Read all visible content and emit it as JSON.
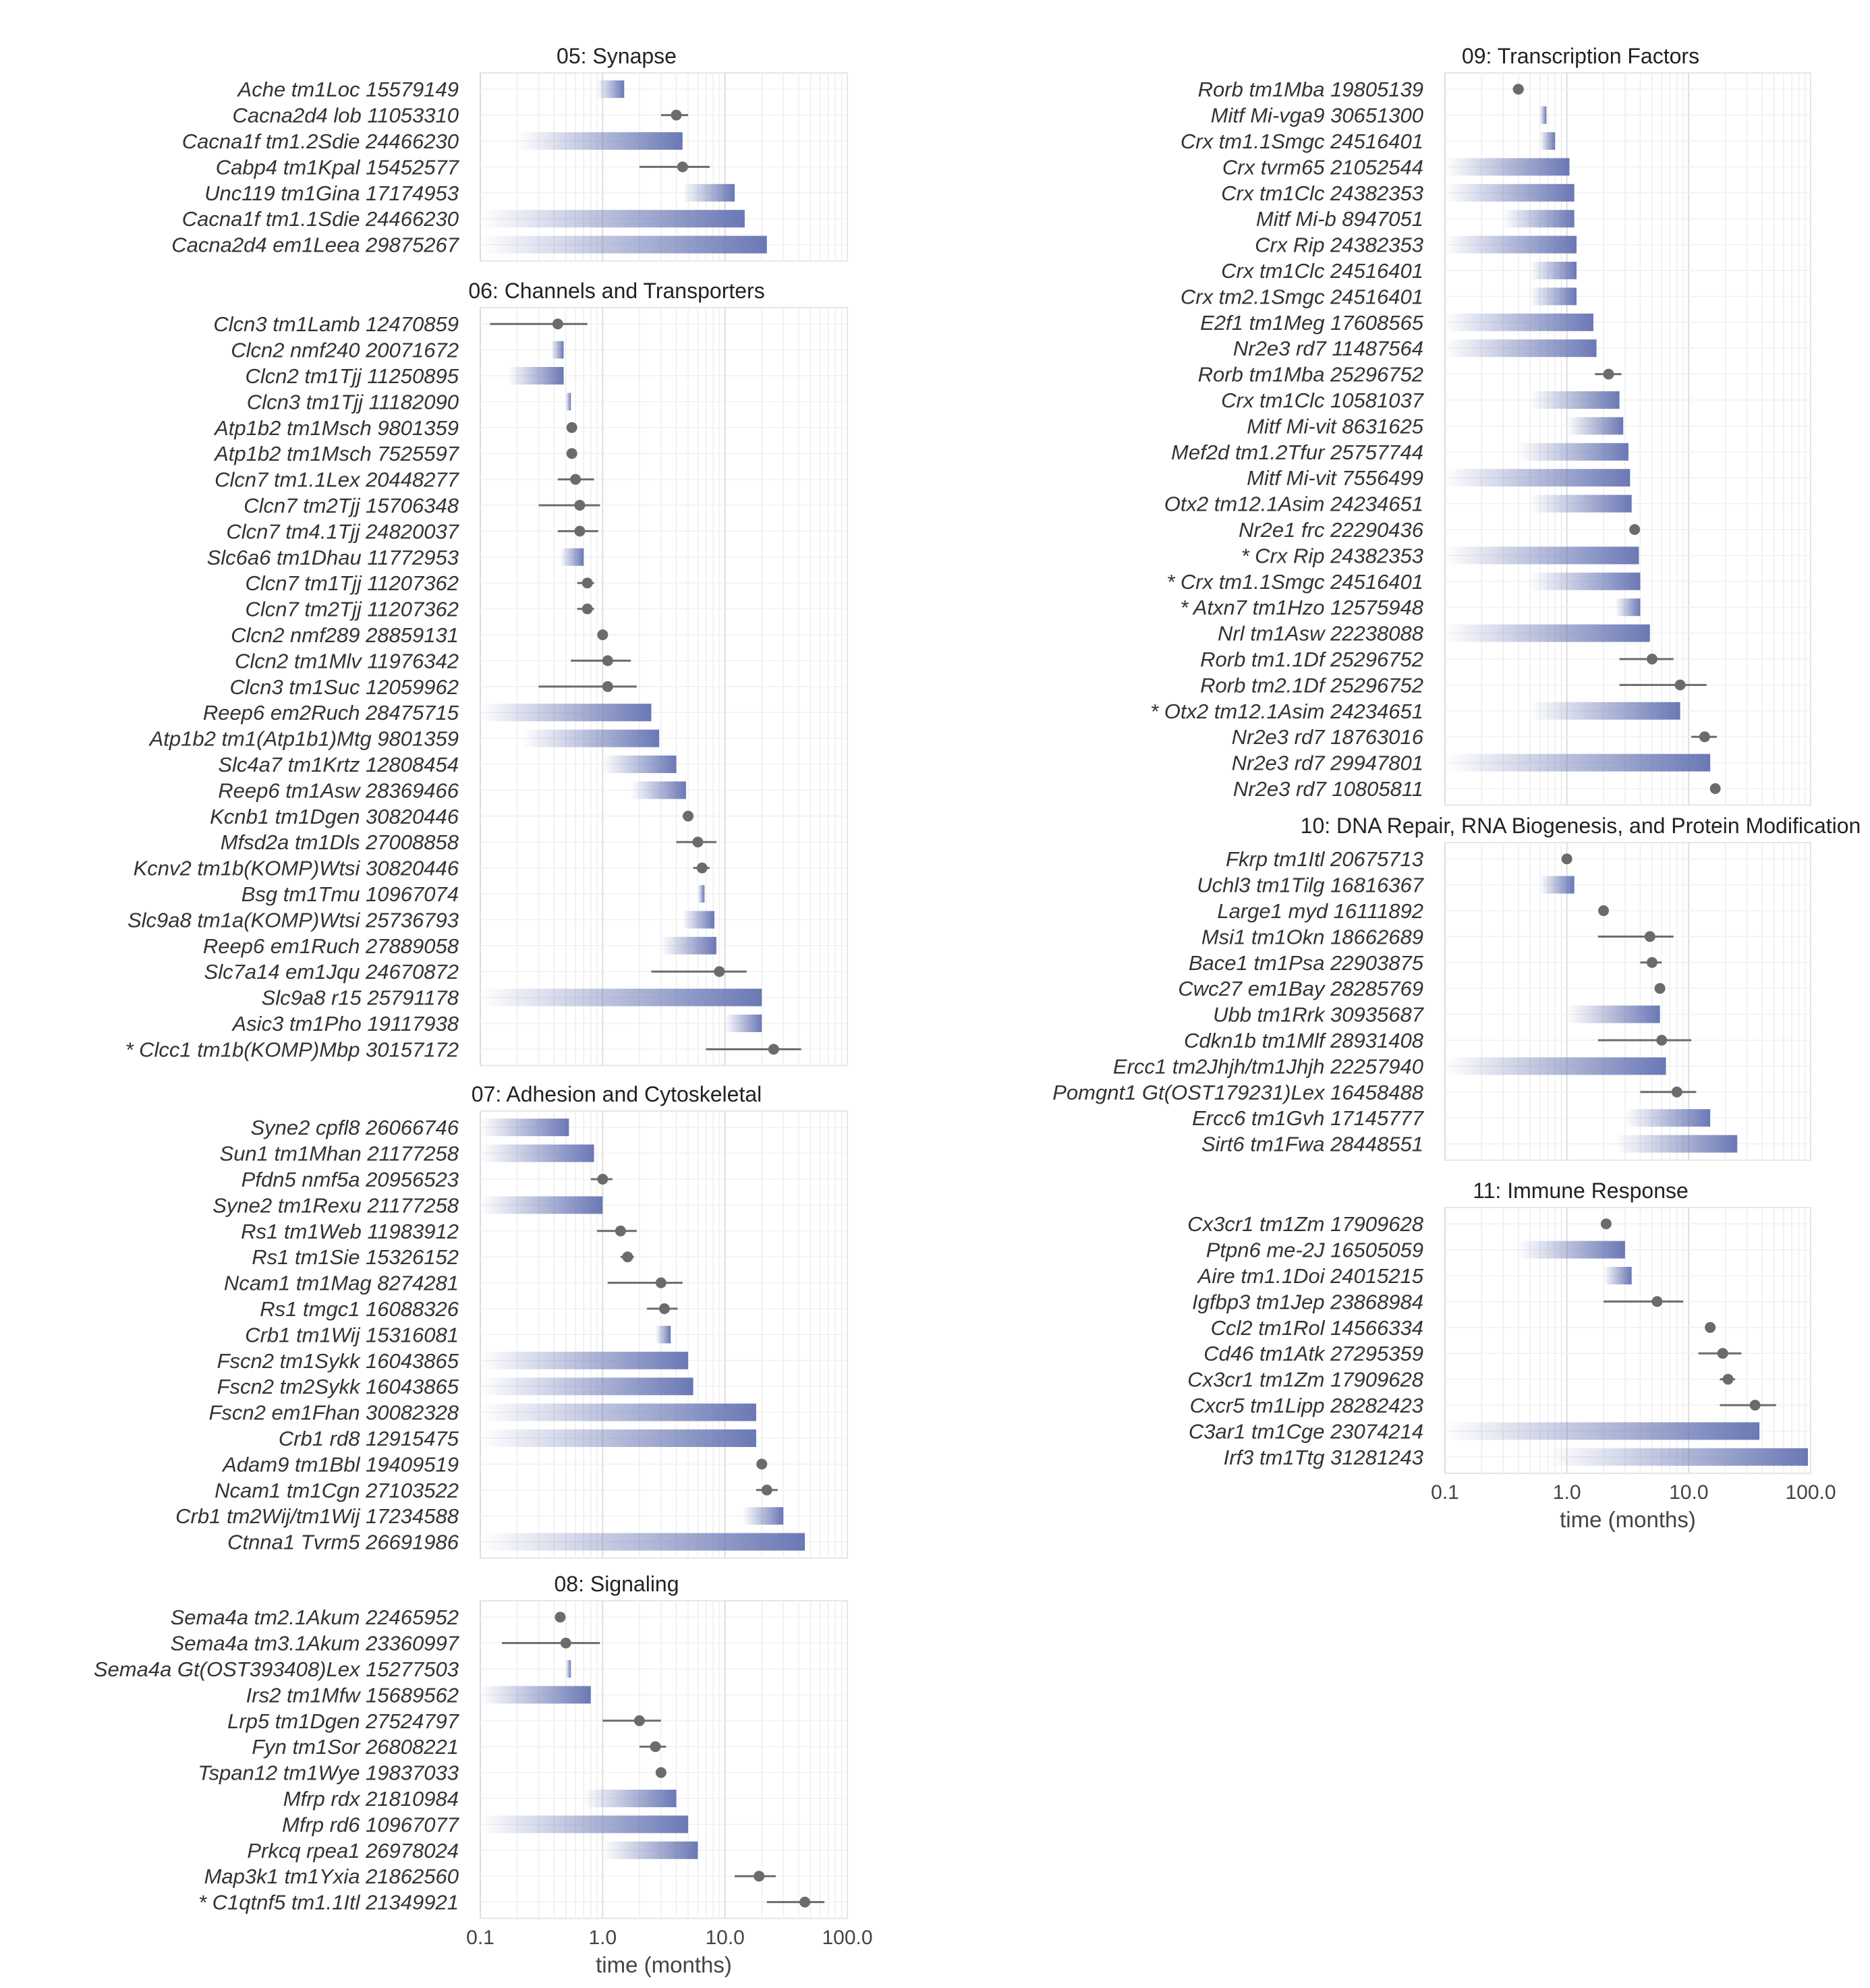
{
  "chart_data": {
    "type": "bar",
    "description_scale": "log10",
    "xaxis": {
      "label": "time (months)",
      "ticks": [
        "0.1",
        "1.0",
        "10.0",
        "100.0"
      ],
      "range": [
        0.1,
        100
      ]
    },
    "colors": {
      "bar": "#6a78b5",
      "point": "#6b6b6b",
      "grid": "#e6e6e6"
    },
    "panels": [
      {
        "title": "05: Synapse",
        "rows": [
          {
            "label": "Ache tm1Loc 15579149",
            "kind": "range",
            "from": 0.9,
            "to": 1.5
          },
          {
            "label": "Cacna2d4 lob 11053310",
            "kind": "point",
            "value": 4.0,
            "lo": 3.0,
            "hi": 5.0
          },
          {
            "label": "Cacna1f tm1.2Sdie 24466230",
            "kind": "range",
            "from": 0.2,
            "to": 4.5
          },
          {
            "label": "Cabp4 tm1Kpal 15452577",
            "kind": "point",
            "value": 4.5,
            "lo": 2.0,
            "hi": 7.5
          },
          {
            "label": "Unc119 tm1Gina 17174953",
            "kind": "range",
            "from": 4.5,
            "to": 12
          },
          {
            "label": "Cacna1f tm1.1Sdie 24466230",
            "kind": "range",
            "from": 0.1,
            "to": 14.5
          },
          {
            "label": "Cacna2d4 em1Leea 29875267",
            "kind": "range",
            "from": 0.1,
            "to": 22
          }
        ]
      },
      {
        "title": "06: Channels and Transporters",
        "rows": [
          {
            "label": "Clcn3 tm1Lamb 12470859",
            "kind": "point",
            "value": 0.43,
            "lo": 0.12,
            "hi": 0.75
          },
          {
            "label": "Clcn2 nmf240 20071672",
            "kind": "range",
            "from": 0.38,
            "to": 0.48
          },
          {
            "label": "Clcn2 tm1Tjj 11250895",
            "kind": "range",
            "from": 0.17,
            "to": 0.48
          },
          {
            "label": "Clcn3 tm1Tjj 11182090",
            "kind": "range",
            "from": 0.5,
            "to": 0.55
          },
          {
            "label": "Atp1b2 tm1Msch 9801359",
            "kind": "point",
            "value": 0.56
          },
          {
            "label": "Atp1b2 tm1Msch 7525597",
            "kind": "point",
            "value": 0.56
          },
          {
            "label": "Clcn7 tm1.1Lex 20448277",
            "kind": "point",
            "value": 0.6,
            "lo": 0.43,
            "hi": 0.85
          },
          {
            "label": "Clcn7 tm2Tjj 15706348",
            "kind": "point",
            "value": 0.65,
            "lo": 0.3,
            "hi": 0.95
          },
          {
            "label": "Clcn7 tm4.1Tjj 24820037",
            "kind": "point",
            "value": 0.65,
            "lo": 0.43,
            "hi": 0.92
          },
          {
            "label": "Slc6a6 tm1Dhau 11772953",
            "kind": "range",
            "from": 0.45,
            "to": 0.7
          },
          {
            "label": "Clcn7 tm1Tjj 11207362",
            "kind": "point",
            "value": 0.75,
            "lo": 0.62,
            "hi": 0.85
          },
          {
            "label": "Clcn7 tm2Tjj 11207362",
            "kind": "point",
            "value": 0.75,
            "lo": 0.62,
            "hi": 0.85
          },
          {
            "label": "Clcn2 nmf289 28859131",
            "kind": "point",
            "value": 1.0
          },
          {
            "label": "Clcn2 tm1Mlv 11976342",
            "kind": "point",
            "value": 1.1,
            "lo": 0.55,
            "hi": 1.7
          },
          {
            "label": "Clcn3 tm1Suc 12059962",
            "kind": "point",
            "value": 1.1,
            "lo": 0.3,
            "hi": 1.9
          },
          {
            "label": "Reep6 em2Ruch 28475715",
            "kind": "range",
            "from": 0.1,
            "to": 2.5
          },
          {
            "label": "Atp1b2 tm1(Atp1b1)Mtg 9801359",
            "kind": "range",
            "from": 0.22,
            "to": 2.9
          },
          {
            "label": "Slc4a7 tm1Krtz 12808454",
            "kind": "range",
            "from": 1.0,
            "to": 4.0
          },
          {
            "label": "Reep6 tm1Asw 28369466",
            "kind": "range",
            "from": 1.7,
            "to": 4.8
          },
          {
            "label": "Kcnb1 tm1Dgen 30820446",
            "kind": "point",
            "value": 5.0,
            "lo": 4.5,
            "hi": 5.5
          },
          {
            "label": "Mfsd2a tm1Dls 27008858",
            "kind": "point",
            "value": 6.0,
            "lo": 4.0,
            "hi": 8.5
          },
          {
            "label": "Kcnv2 tm1b(KOMP)Wtsi 30820446",
            "kind": "point",
            "value": 6.5,
            "lo": 5.5,
            "hi": 7.5
          },
          {
            "label": "Bsg tm1Tmu 10967074",
            "kind": "range",
            "from": 6.0,
            "to": 6.8
          },
          {
            "label": "Slc9a8 tm1a(KOMP)Wtsi 25736793",
            "kind": "range",
            "from": 4.5,
            "to": 8.2
          },
          {
            "label": "Reep6 em1Ruch 27889058",
            "kind": "range",
            "from": 3.0,
            "to": 8.5
          },
          {
            "label": "Slc7a14 em1Jqu 24670872",
            "kind": "point",
            "value": 9.0,
            "lo": 2.5,
            "hi": 15
          },
          {
            "label": "Slc9a8 r15 25791178",
            "kind": "range",
            "from": 0.1,
            "to": 20
          },
          {
            "label": "Asic3 tm1Pho 19117938",
            "kind": "range",
            "from": 10,
            "to": 20
          },
          {
            "label": "* Clcc1 tm1b(KOMP)Mbp 30157172",
            "kind": "point",
            "value": 25,
            "lo": 7,
            "hi": 42
          }
        ]
      },
      {
        "title": "07: Adhesion and Cytoskeletal",
        "rows": [
          {
            "label": "Syne2 cpfl8 26066746",
            "kind": "range",
            "from": 0.1,
            "to": 0.53
          },
          {
            "label": "Sun1 tm1Mhan 21177258",
            "kind": "range",
            "from": 0.1,
            "to": 0.85
          },
          {
            "label": "Pfdn5 nmf5a 20956523",
            "kind": "point",
            "value": 1.0,
            "lo": 0.8,
            "hi": 1.2
          },
          {
            "label": "Syne2 tm1Rexu 21177258",
            "kind": "range",
            "from": 0.1,
            "to": 1.0
          },
          {
            "label": "Rs1 tm1Web 11983912",
            "kind": "point",
            "value": 1.4,
            "lo": 0.9,
            "hi": 1.9
          },
          {
            "label": "Rs1 tm1Sie 15326152",
            "kind": "point",
            "value": 1.6,
            "lo": 1.4,
            "hi": 1.8
          },
          {
            "label": "Ncam1 tm1Mag 8274281",
            "kind": "point",
            "value": 3.0,
            "lo": 1.1,
            "hi": 4.5
          },
          {
            "label": "Rs1 tmgc1 16088326",
            "kind": "point",
            "value": 3.2,
            "lo": 2.3,
            "hi": 4.1
          },
          {
            "label": "Crb1 tm1Wij 15316081",
            "kind": "range",
            "from": 2.7,
            "to": 3.6
          },
          {
            "label": "Fscn2 tm1Sykk 16043865",
            "kind": "range",
            "from": 0.1,
            "to": 5.0
          },
          {
            "label": "Fscn2 tm2Sykk 16043865",
            "kind": "range",
            "from": 0.1,
            "to": 5.5
          },
          {
            "label": "Fscn2 em1Fhan 30082328",
            "kind": "range",
            "from": 0.1,
            "to": 18
          },
          {
            "label": "Crb1 rd8 12915475",
            "kind": "range",
            "from": 0.1,
            "to": 18
          },
          {
            "label": "Adam9 tm1Bbl 19409519",
            "kind": "point",
            "value": 20
          },
          {
            "label": "Ncam1 tm1Cgn 27103522",
            "kind": "point",
            "value": 22,
            "lo": 18,
            "hi": 27
          },
          {
            "label": "Crb1 tm2Wij/tm1Wij 17234588",
            "kind": "range",
            "from": 14,
            "to": 30
          },
          {
            "label": "Ctnna1 Tvrm5 26691986",
            "kind": "range",
            "from": 0.1,
            "to": 45
          }
        ]
      },
      {
        "title": "08: Signaling",
        "rows": [
          {
            "label": "Sema4a tm2.1Akum 22465952",
            "kind": "point",
            "value": 0.45
          },
          {
            "label": "Sema4a tm3.1Akum 23360997",
            "kind": "point",
            "value": 0.5,
            "lo": 0.15,
            "hi": 0.95
          },
          {
            "label": "Sema4a Gt(OST393408)Lex 15277503",
            "kind": "range",
            "from": 0.5,
            "to": 0.55
          },
          {
            "label": "Irs2 tm1Mfw 15689562",
            "kind": "range",
            "from": 0.1,
            "to": 0.8
          },
          {
            "label": "Lrp5 tm1Dgen 27524797",
            "kind": "point",
            "value": 2.0,
            "lo": 1.0,
            "hi": 3.0
          },
          {
            "label": "Fyn tm1Sor 26808221",
            "kind": "point",
            "value": 2.7,
            "lo": 2.0,
            "hi": 3.3
          },
          {
            "label": "Tspan12 tm1Wye 19837033",
            "kind": "point",
            "value": 3.0
          },
          {
            "label": "Mfrp rdx 21810984",
            "kind": "range",
            "from": 0.7,
            "to": 4.0
          },
          {
            "label": "Mfrp rd6 10967077",
            "kind": "range",
            "from": 0.1,
            "to": 5.0
          },
          {
            "label": "Prkcq rpea1 26978024",
            "kind": "range",
            "from": 1.0,
            "to": 6.0
          },
          {
            "label": "Map3k1 tm1Yxia 21862560",
            "kind": "point",
            "value": 19,
            "lo": 12,
            "hi": 26
          },
          {
            "label": "* C1qtnf5 tm1.1Itl 21349921",
            "kind": "point",
            "value": 45,
            "lo": 22,
            "hi": 65
          }
        ]
      },
      {
        "title": "09: Transcription Factors",
        "rows": [
          {
            "label": "Rorb tm1Mba 19805139",
            "kind": "point",
            "value": 0.4,
            "lo": 0.36,
            "hi": 0.44
          },
          {
            "label": "Mitf Mi-vga9 30651300",
            "kind": "range",
            "from": 0.6,
            "to": 0.68
          },
          {
            "label": "Crx tm1.1Smgc 24516401",
            "kind": "range",
            "from": 0.6,
            "to": 0.8
          },
          {
            "label": "Crx tvrm65 21052544",
            "kind": "range",
            "from": 0.1,
            "to": 1.05
          },
          {
            "label": "Crx tm1Clc 24382353",
            "kind": "range",
            "from": 0.1,
            "to": 1.15
          },
          {
            "label": "Mitf Mi-b 8947051",
            "kind": "range",
            "from": 0.3,
            "to": 1.15
          },
          {
            "label": "Crx Rip 24382353",
            "kind": "range",
            "from": 0.1,
            "to": 1.2
          },
          {
            "label": "Crx tm1Clc 24516401",
            "kind": "range",
            "from": 0.5,
            "to": 1.2
          },
          {
            "label": "Crx tm2.1Smgc 24516401",
            "kind": "range",
            "from": 0.5,
            "to": 1.2
          },
          {
            "label": "E2f1 tm1Meg 17608565",
            "kind": "range",
            "from": 0.1,
            "to": 1.65
          },
          {
            "label": "Nr2e3 rd7 11487564",
            "kind": "range",
            "from": 0.1,
            "to": 1.75
          },
          {
            "label": "Rorb tm1Mba 25296752",
            "kind": "point",
            "value": 2.2,
            "lo": 1.7,
            "hi": 2.8
          },
          {
            "label": "Crx tm1Clc 10581037",
            "kind": "range",
            "from": 0.5,
            "to": 2.7
          },
          {
            "label": "Mitf Mi-vit 8631625",
            "kind": "range",
            "from": 1.0,
            "to": 2.9
          },
          {
            "label": "Mef2d tm1.2Tfur 25757744",
            "kind": "range",
            "from": 0.4,
            "to": 3.2
          },
          {
            "label": "Mitf Mi-vit 7556499",
            "kind": "range",
            "from": 0.1,
            "to": 3.3
          },
          {
            "label": "Otx2 tm12.1Asim 24234651",
            "kind": "range",
            "from": 0.5,
            "to": 3.4
          },
          {
            "label": "Nr2e1 frc 22290436",
            "kind": "point",
            "value": 3.6
          },
          {
            "label": "* Crx Rip 24382353",
            "kind": "range",
            "from": 0.1,
            "to": 3.9
          },
          {
            "label": "* Crx tm1.1Smgc 24516401",
            "kind": "range",
            "from": 0.5,
            "to": 4.0
          },
          {
            "label": "* Atxn7 tm1Hzo 12575948",
            "kind": "range",
            "from": 2.5,
            "to": 4.0
          },
          {
            "label": "Nrl tm1Asw 22238088",
            "kind": "range",
            "from": 0.1,
            "to": 4.8
          },
          {
            "label": "Rorb tm1.1Df 25296752",
            "kind": "point",
            "value": 5.0,
            "lo": 2.7,
            "hi": 7.5
          },
          {
            "label": "Rorb tm2.1Df 25296752",
            "kind": "point",
            "value": 8.5,
            "lo": 2.7,
            "hi": 14
          },
          {
            "label": "* Otx2 tm12.1Asim 24234651",
            "kind": "range",
            "from": 0.5,
            "to": 8.5
          },
          {
            "label": "Nr2e3 rd7 18763016",
            "kind": "point",
            "value": 13.5,
            "lo": 10.5,
            "hi": 17
          },
          {
            "label": "Nr2e3 rd7 29947801",
            "kind": "range",
            "from": 0.1,
            "to": 15
          },
          {
            "label": "Nr2e3 rd7 10805811",
            "kind": "point",
            "value": 16.5
          }
        ]
      },
      {
        "title": "10: DNA Repair, RNA Biogenesis, and Protein Modification",
        "rows": [
          {
            "label": "Fkrp tm1Itl 20675713",
            "kind": "point",
            "value": 1.0,
            "lo": 0.93,
            "hi": 1.07
          },
          {
            "label": "Uchl3 tm1Tilg 16816367",
            "kind": "range",
            "from": 0.6,
            "to": 1.15
          },
          {
            "label": "Large1 myd 16111892",
            "kind": "point",
            "value": 2.0
          },
          {
            "label": "Msi1 tm1Okn 18662689",
            "kind": "point",
            "value": 4.8,
            "lo": 1.8,
            "hi": 7.5
          },
          {
            "label": "Bace1 tm1Psa 22903875",
            "kind": "point",
            "value": 5.0,
            "lo": 4.0,
            "hi": 6.0
          },
          {
            "label": "Cwc27 em1Bay 28285769",
            "kind": "point",
            "value": 5.8
          },
          {
            "label": "Ubb tm1Rrk 30935687",
            "kind": "range",
            "from": 1.0,
            "to": 5.8
          },
          {
            "label": "Cdkn1b tm1Mlf 28931408",
            "kind": "point",
            "value": 6.0,
            "lo": 1.8,
            "hi": 10.5
          },
          {
            "label": "Ercc1 tm2Jhjh/tm1Jhjh 22257940",
            "kind": "range",
            "from": 0.1,
            "to": 6.5
          },
          {
            "label": "Pomgnt1 Gt(OST179231)Lex 16458488",
            "kind": "point",
            "value": 8.0,
            "lo": 4.0,
            "hi": 11.5
          },
          {
            "label": "Ercc6 tm1Gvh 17145777",
            "kind": "range",
            "from": 3.0,
            "to": 15
          },
          {
            "label": "Sirt6 tm1Fwa 28448551",
            "kind": "range",
            "from": 2.5,
            "to": 25
          }
        ]
      },
      {
        "title": "11: Immune Response",
        "rows": [
          {
            "label": "Cx3cr1 tm1Zm 17909628",
            "kind": "point",
            "value": 2.1
          },
          {
            "label": "Ptpn6 me-2J 16505059",
            "kind": "range",
            "from": 0.4,
            "to": 3.0
          },
          {
            "label": "Aire tm1.1Doi 24015215",
            "kind": "range",
            "from": 2.0,
            "to": 3.4
          },
          {
            "label": "Igfbp3 tm1Jep 23868984",
            "kind": "point",
            "value": 5.5,
            "lo": 2.0,
            "hi": 9.0
          },
          {
            "label": "Ccl2 tm1Rol 14566334",
            "kind": "point",
            "value": 15
          },
          {
            "label": "Cd46 tm1Atk 27295359",
            "kind": "point",
            "value": 19,
            "lo": 12,
            "hi": 27
          },
          {
            "label": "Cx3cr1 tm1Zm 17909628",
            "kind": "point",
            "value": 21,
            "lo": 18,
            "hi": 24
          },
          {
            "label": "Cxcr5 tm1Lipp 28282423",
            "kind": "point",
            "value": 35,
            "lo": 18,
            "hi": 52
          },
          {
            "label": "C3ar1 tm1Cge 23074214",
            "kind": "range",
            "from": 0.1,
            "to": 38
          },
          {
            "label": "Irf3 tm1Ttg 31281243",
            "kind": "range",
            "from": 0.7,
            "to": 95
          }
        ]
      }
    ]
  }
}
